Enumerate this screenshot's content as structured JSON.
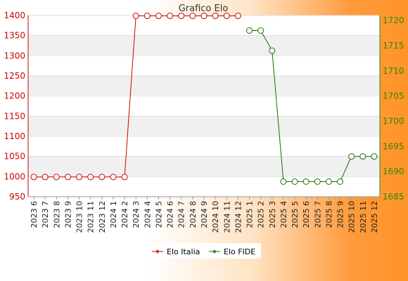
{
  "chart_data": {
    "type": "line",
    "title": "Grafico Elo",
    "categories": [
      "2023 6",
      "2023 7",
      "2023 8",
      "2023 9",
      "2023 10",
      "2023 11",
      "2023 12",
      "2024 1",
      "2024 2",
      "2024 3",
      "2024 4",
      "2024 5",
      "2024 6",
      "2024 7",
      "2024 8",
      "2024 9",
      "2024 10",
      "2024 11",
      "2024 12",
      "2025 1",
      "2025 2",
      "2025 3",
      "2025 4",
      "2025 5",
      "2025 6",
      "2025 7",
      "2025 8",
      "2025 9",
      "2025 10",
      "2025 11",
      "2025 12"
    ],
    "left_axis": {
      "ylim": [
        950,
        1400
      ],
      "ticks": [
        950,
        1000,
        1050,
        1100,
        1150,
        1200,
        1250,
        1300,
        1350,
        1400
      ],
      "color": "#cc0000"
    },
    "right_axis": {
      "ylim": [
        1685,
        1721
      ],
      "ticks": [
        1685,
        1690,
        1695,
        1700,
        1705,
        1710,
        1715,
        1720
      ],
      "color": "#338800"
    },
    "series": [
      {
        "name": "Elo Italia",
        "axis": "left",
        "color": "#cc0000",
        "values": [
          999,
          999,
          999,
          999,
          999,
          999,
          999,
          999,
          999,
          1399,
          1399,
          1399,
          1399,
          1399,
          1399,
          1399,
          1399,
          1399,
          1399,
          null,
          null,
          null,
          null,
          null,
          null,
          null,
          null,
          null,
          null,
          null,
          null
        ]
      },
      {
        "name": "Elo FIDE",
        "axis": "right",
        "color": "#1a6e00",
        "values": [
          null,
          null,
          null,
          null,
          null,
          null,
          null,
          null,
          null,
          null,
          null,
          null,
          null,
          null,
          null,
          null,
          null,
          null,
          null,
          1718,
          1718,
          1714,
          1688,
          1688,
          1688,
          1688,
          1688,
          1688,
          1693,
          1693,
          1693
        ]
      }
    ],
    "grid": "horizontal bands",
    "legend": "bottom"
  }
}
